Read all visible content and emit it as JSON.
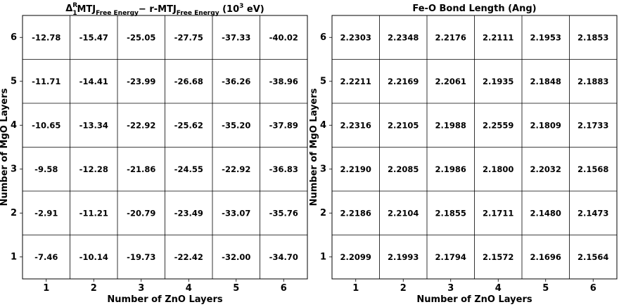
{
  "chart_data": [
    {
      "type": "table",
      "title": {
        "parts": [
          {
            "text": "Δ",
            "style": "normal"
          },
          {
            "text": "R",
            "style": "sup"
          },
          {
            "text": "1",
            "style": "sub"
          },
          {
            "text": "MTJ",
            "style": "normal"
          },
          {
            "text": "Free Energy",
            "style": "sub"
          },
          {
            "text": "− r-MTJ",
            "style": "normal"
          },
          {
            "text": "Free Energy",
            "style": "sub"
          },
          {
            "text": " (10",
            "style": "normal"
          },
          {
            "text": "3",
            "style": "sup"
          },
          {
            "text": " eV)",
            "style": "normal"
          }
        ]
      },
      "xlabel": "Number of ZnO Layers",
      "ylabel": "Number of MgO Layers",
      "x_ticks": [
        "1",
        "2",
        "3",
        "4",
        "5",
        "6"
      ],
      "y_ticks": [
        "1",
        "2",
        "3",
        "4",
        "5",
        "6"
      ],
      "rows": [
        {
          "y": "6",
          "values": [
            "-12.78",
            "-15.47",
            "-25.05",
            "-27.75",
            "-37.33",
            "-40.02"
          ]
        },
        {
          "y": "5",
          "values": [
            "-11.71",
            "-14.41",
            "-23.99",
            "-26.68",
            "-36.26",
            "-38.96"
          ]
        },
        {
          "y": "4",
          "values": [
            "-10.65",
            "-13.34",
            "-22.92",
            "-25.62",
            "-35.20",
            "-37.89"
          ]
        },
        {
          "y": "3",
          "values": [
            "-9.58",
            "-12.28",
            "-21.86",
            "-24.55",
            "-22.92",
            "-36.83"
          ]
        },
        {
          "y": "2",
          "values": [
            "-2.91",
            "-11.21",
            "-20.79",
            "-23.49",
            "-33.07",
            "-35.76"
          ]
        },
        {
          "y": "1",
          "values": [
            "-7.46",
            "-10.14",
            "-19.73",
            "-22.42",
            "-32.00",
            "-34.70"
          ]
        }
      ],
      "grid": true
    },
    {
      "type": "table",
      "title": {
        "parts": [
          {
            "text": "Fe-O Bond Length (Ang)",
            "style": "normal"
          }
        ]
      },
      "xlabel": "Number of ZnO Layers",
      "ylabel": "Number of MgO Layers",
      "x_ticks": [
        "1",
        "2",
        "3",
        "4",
        "5",
        "6"
      ],
      "y_ticks": [
        "1",
        "2",
        "3",
        "4",
        "5",
        "6"
      ],
      "rows": [
        {
          "y": "6",
          "values": [
            "2.2303",
            "2.2348",
            "2.2176",
            "2.2111",
            "2.1953",
            "2.1853"
          ]
        },
        {
          "y": "5",
          "values": [
            "2.2211",
            "2.2169",
            "2.2061",
            "2.1935",
            "2.1848",
            "2.1883"
          ]
        },
        {
          "y": "4",
          "values": [
            "2.2316",
            "2.2105",
            "2.1988",
            "2.2559",
            "2.1809",
            "2.1733"
          ]
        },
        {
          "y": "3",
          "values": [
            "2.2190",
            "2.2085",
            "2.1986",
            "2.1800",
            "2.2032",
            "2.1568"
          ]
        },
        {
          "y": "2",
          "values": [
            "2.2186",
            "2.2104",
            "2.1855",
            "2.1711",
            "2.1480",
            "2.1473"
          ]
        },
        {
          "y": "1",
          "values": [
            "2.2099",
            "2.1993",
            "2.1794",
            "2.1572",
            "2.1696",
            "2.1564"
          ]
        }
      ],
      "grid": true
    }
  ]
}
